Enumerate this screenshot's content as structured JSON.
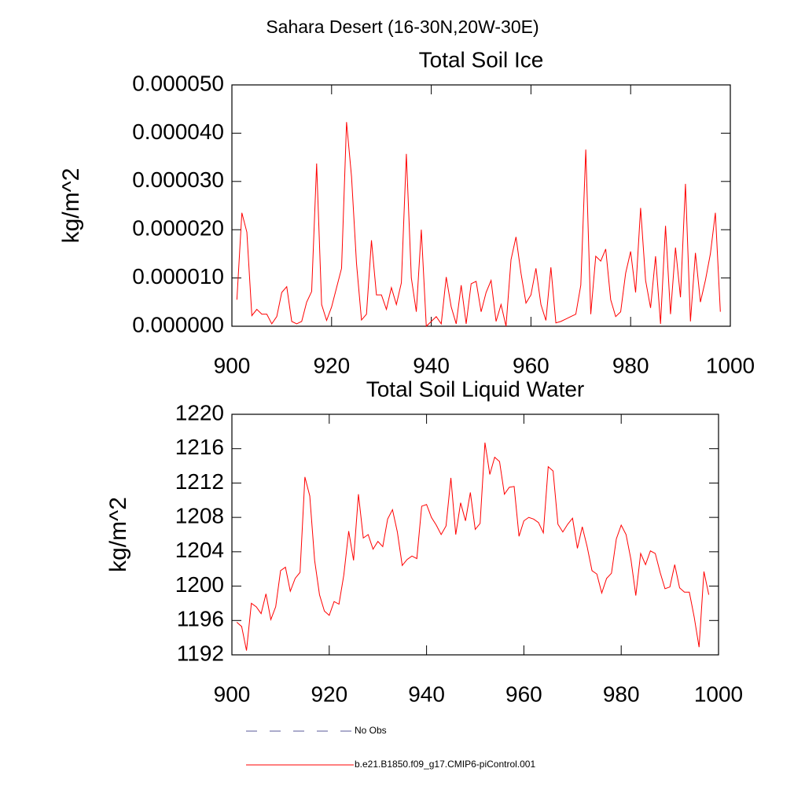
{
  "title": "Sahara Desert (16-30N,20W-30E)",
  "chart_data": [
    {
      "type": "line",
      "title": "Total Soil Ice",
      "y_label": "kg/m^2",
      "x": [
        901,
        902,
        903,
        904,
        905,
        906,
        907,
        908,
        909,
        910,
        911,
        912,
        913,
        914,
        915,
        916,
        917,
        918,
        919,
        920,
        921,
        922,
        923,
        924,
        925,
        926,
        927,
        928,
        929,
        930,
        931,
        932,
        933,
        934,
        935,
        936,
        937,
        938,
        939,
        940,
        941,
        942,
        943,
        944,
        945,
        946,
        947,
        948,
        949,
        950,
        951,
        952,
        953,
        954,
        955,
        956,
        957,
        958,
        959,
        960,
        961,
        962,
        963,
        964,
        965,
        966,
        967,
        968,
        969,
        970,
        971,
        972,
        973,
        974,
        975,
        976,
        977,
        978,
        979,
        980,
        981,
        982,
        983,
        984,
        985,
        986,
        987,
        988,
        989,
        990,
        991,
        992,
        993,
        994,
        995,
        996,
        997,
        998
      ],
      "series": [
        {
          "color": "#ff0000",
          "values": [
            5.5e-06,
            2.35e-05,
            1.95e-05,
            2.2e-06,
            3.5e-06,
            2.5e-06,
            2.5e-06,
            5e-07,
            2e-06,
            7e-06,
            8.2e-06,
            1e-06,
            5e-07,
            1e-06,
            5e-06,
            7.2e-06,
            3.37e-05,
            4.5e-06,
            1.2e-06,
            4e-06,
            8e-06,
            1.2e-05,
            4.23e-05,
            3.1e-05,
            1.3e-05,
            1.3e-06,
            2.5e-06,
            1.78e-05,
            6.5e-06,
            6.5e-06,
            3.5e-06,
            8e-06,
            4.5e-06,
            9e-06,
            3.57e-05,
            1e-05,
            3e-06,
            2e-05,
            0,
            1e-06,
            2e-06,
            5e-07,
            1.02e-05,
            4e-06,
            5e-07,
            8.5e-06,
            5e-07,
            8.8e-06,
            9.3e-06,
            3e-06,
            7e-06,
            9.5e-06,
            1e-06,
            4.5e-06,
            0,
            1.38e-05,
            1.85e-05,
            1.1e-05,
            4.8e-06,
            6.5e-06,
            1.2e-05,
            4.5e-06,
            1.2e-06,
            1.22e-05,
            7e-07,
            1e-06,
            1.5e-06,
            2e-06,
            2.5e-06,
            8.5e-06,
            3.66e-05,
            2.5e-06,
            1.45e-05,
            1.35e-05,
            1.6e-05,
            5.5e-06,
            2e-06,
            3e-06,
            1.1e-05,
            1.55e-05,
            7e-06,
            2.45e-05,
            9.5e-06,
            3.8e-06,
            1.45e-05,
            5e-07,
            2.08e-05,
            2.5e-06,
            1.63e-05,
            6e-06,
            2.95e-05,
            1e-06,
            1.52e-05,
            5e-06,
            9.5e-06,
            1.5e-05,
            2.35e-05,
            3e-06
          ]
        }
      ],
      "xlim": [
        900,
        1000
      ],
      "xticks": [
        900,
        920,
        940,
        960,
        980,
        1000
      ],
      "ylim": [
        0,
        5e-05
      ],
      "yticks": [
        {
          "value": 0,
          "label": "0.000000"
        },
        {
          "value": 1e-05,
          "label": "0.000010"
        },
        {
          "value": 2e-05,
          "label": "0.000020"
        },
        {
          "value": 3e-05,
          "label": "0.000030"
        },
        {
          "value": 4e-05,
          "label": "0.000040"
        },
        {
          "value": 5e-05,
          "label": "0.000050"
        }
      ]
    },
    {
      "type": "line",
      "title": "Total Soil Liquid Water",
      "y_label": "kg/m^2",
      "x": [
        901,
        902,
        903,
        904,
        905,
        906,
        907,
        908,
        909,
        910,
        911,
        912,
        913,
        914,
        915,
        916,
        917,
        918,
        919,
        920,
        921,
        922,
        923,
        924,
        925,
        926,
        927,
        928,
        929,
        930,
        931,
        932,
        933,
        934,
        935,
        936,
        937,
        938,
        939,
        940,
        941,
        942,
        943,
        944,
        945,
        946,
        947,
        948,
        949,
        950,
        951,
        952,
        953,
        954,
        955,
        956,
        957,
        958,
        959,
        960,
        961,
        962,
        963,
        964,
        965,
        966,
        967,
        968,
        969,
        970,
        971,
        972,
        973,
        974,
        975,
        976,
        977,
        978,
        979,
        980,
        981,
        982,
        983,
        984,
        985,
        986,
        987,
        988,
        989,
        990,
        991,
        992,
        993,
        994,
        995,
        996,
        997,
        998
      ],
      "series": [
        {
          "color": "#ff0000",
          "values": [
            1195.8,
            1195.3,
            1192.5,
            1198,
            1197.6,
            1196.8,
            1199.1,
            1196.1,
            1197.6,
            1201.8,
            1202.2,
            1199.4,
            1200.9,
            1201.6,
            1212.7,
            1210.5,
            1203,
            1199,
            1197.1,
            1196.6,
            1198.2,
            1197.9,
            1201.3,
            1206.4,
            1203,
            1210.7,
            1205.6,
            1206,
            1204.3,
            1205.2,
            1204.6,
            1207.8,
            1208.9,
            1206.3,
            1202.4,
            1203.1,
            1203.5,
            1203.2,
            1209.3,
            1209.5,
            1208,
            1207.1,
            1206,
            1207,
            1212.6,
            1206,
            1209.7,
            1207.6,
            1210.9,
            1206.6,
            1207.3,
            1216.7,
            1213,
            1215,
            1214.5,
            1210.7,
            1211.5,
            1211.6,
            1205.8,
            1207.6,
            1208,
            1207.8,
            1207.4,
            1206.2,
            1213.9,
            1213.4,
            1207.2,
            1206.3,
            1207.2,
            1207.9,
            1204.4,
            1206.9,
            1204.6,
            1201.8,
            1201.4,
            1199.2,
            1200.9,
            1201.5,
            1205.5,
            1207.1,
            1206,
            1203.1,
            1198.9,
            1203.8,
            1202.5,
            1204.1,
            1203.8,
            1201.6,
            1199.7,
            1199.9,
            1202.5,
            1199.8,
            1199.3,
            1199.3,
            1196.4,
            1192.9,
            1201.7,
            1199
          ]
        }
      ],
      "xlim": [
        900,
        1000
      ],
      "xticks": [
        900,
        920,
        940,
        960,
        980,
        1000
      ],
      "ylim": [
        1192,
        1220
      ],
      "yticks": [
        1192,
        1196,
        1200,
        1204,
        1208,
        1212,
        1216,
        1220
      ]
    }
  ],
  "legend": [
    {
      "label": "No Obs",
      "color": "#5a5a9a",
      "style": "dashed"
    },
    {
      "label": "b.e21.B1850.f09_g17.CMIP6-piControl.001",
      "color": "#ff0000",
      "style": "solid"
    }
  ]
}
